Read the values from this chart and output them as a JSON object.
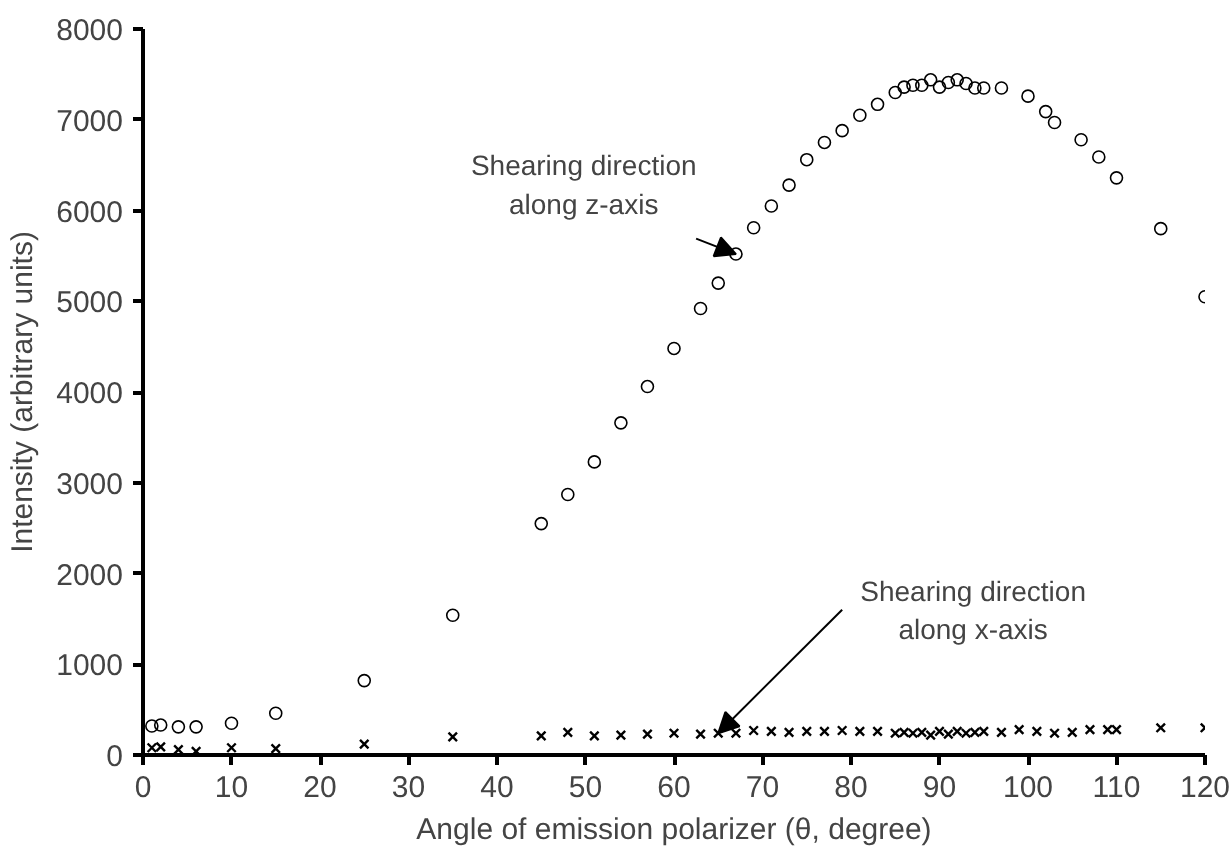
{
  "chart_data": {
    "type": "scatter",
    "xlabel": "Angle of emission polarizer (θ, degree)",
    "ylabel": "Intensity (arbitrary units)",
    "xlim": [
      0,
      120
    ],
    "ylim": [
      0,
      8000
    ],
    "xticks": [
      0,
      10,
      20,
      30,
      40,
      50,
      60,
      70,
      80,
      90,
      100,
      110,
      120
    ],
    "yticks": [
      0,
      1000,
      2000,
      3000,
      4000,
      5000,
      6000,
      7000,
      8000
    ],
    "grid": false,
    "series": [
      {
        "marker": "circle",
        "color": "#000000",
        "x": [
          1,
          2,
          4,
          6,
          10,
          15,
          25,
          35,
          45,
          48,
          51,
          54,
          57,
          60,
          63,
          65,
          67,
          69,
          71,
          73,
          75,
          77,
          79,
          81,
          83,
          85,
          86,
          87,
          88,
          89,
          90,
          91,
          92,
          93,
          94,
          95,
          97,
          100,
          102,
          103,
          106,
          108,
          110,
          115,
          120
        ],
        "values": [
          320,
          330,
          310,
          310,
          350,
          460,
          820,
          1540,
          2550,
          2870,
          3230,
          3660,
          4060,
          4480,
          4920,
          5200,
          5520,
          5810,
          6050,
          6280,
          6560,
          6750,
          6880,
          7050,
          7170,
          7300,
          7360,
          7380,
          7380,
          7440,
          7360,
          7410,
          7440,
          7400,
          7350,
          7350,
          7350,
          7260,
          7090,
          6970,
          6780,
          6590,
          6360,
          5800,
          5050
        ]
      },
      {
        "marker": "cross",
        "color": "#000000",
        "x": [
          1,
          2,
          4,
          6,
          10,
          15,
          25,
          35,
          45,
          48,
          51,
          54,
          57,
          60,
          63,
          65,
          67,
          69,
          71,
          73,
          75,
          77,
          79,
          81,
          83,
          85,
          86,
          87,
          88,
          89,
          90,
          91,
          92,
          93,
          94,
          95,
          97,
          99,
          101,
          103,
          105,
          107,
          109,
          110,
          115,
          120
        ],
        "values": [
          80,
          90,
          60,
          40,
          80,
          70,
          120,
          200,
          210,
          250,
          210,
          220,
          230,
          240,
          230,
          240,
          240,
          270,
          260,
          250,
          260,
          260,
          270,
          260,
          260,
          240,
          250,
          240,
          250,
          220,
          260,
          230,
          260,
          240,
          250,
          260,
          250,
          280,
          260,
          240,
          250,
          280,
          280,
          280,
          300,
          300
        ]
      }
    ],
    "annotations": [
      {
        "text": "Shearing direction\nalong z-axis",
        "x": 67,
        "y": 5520
      },
      {
        "text": "Shearing direction\nalong x-axis",
        "x": 65,
        "y": 240
      }
    ]
  }
}
